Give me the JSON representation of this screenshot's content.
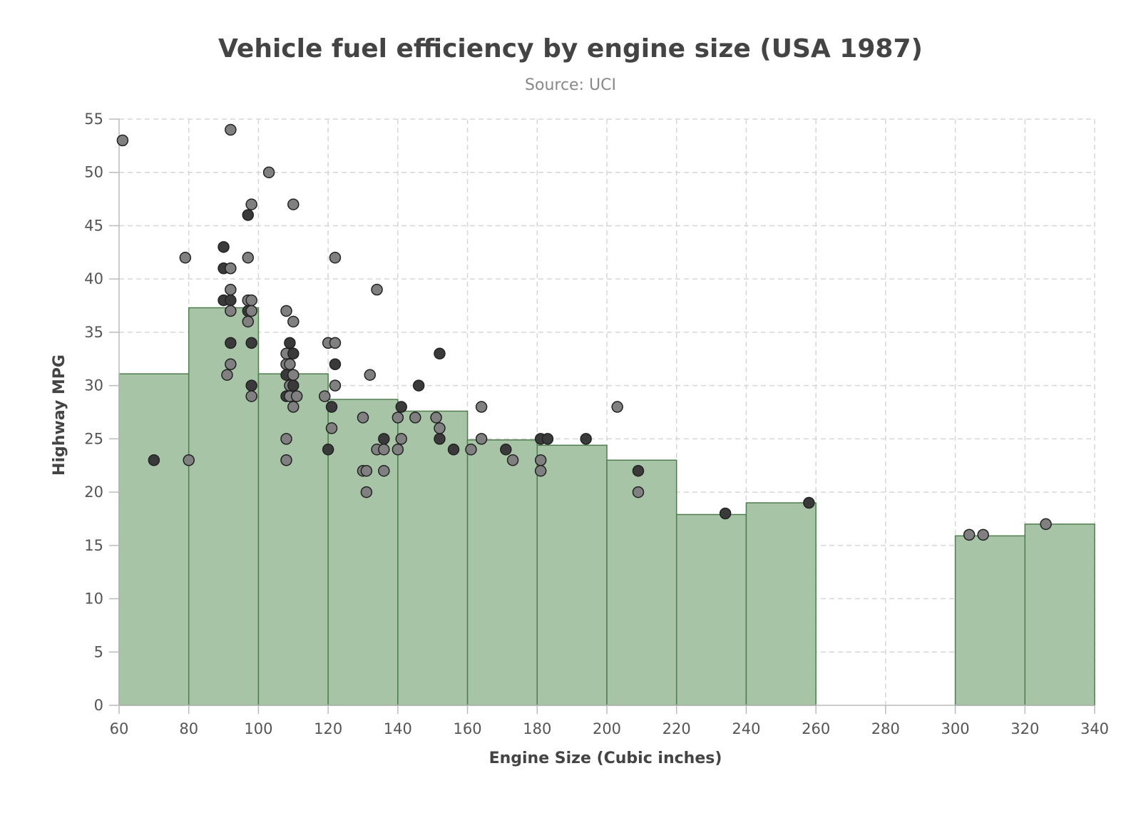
{
  "chart_data": {
    "type": "bar+scatter",
    "title": "Vehicle fuel efficiency by engine size (USA 1987)",
    "subtitle": "Source: UCI",
    "xlabel": "Engine Size (Cubic inches)",
    "ylabel": "Highway MPG",
    "xlim": [
      60,
      340
    ],
    "ylim": [
      0,
      55
    ],
    "x_ticks": [
      60,
      80,
      100,
      120,
      140,
      160,
      180,
      200,
      220,
      240,
      260,
      280,
      300,
      320,
      340
    ],
    "y_ticks": [
      0,
      5,
      10,
      15,
      20,
      25,
      30,
      35,
      40,
      45,
      50,
      55
    ],
    "grid": true,
    "colors": {
      "bar_fill": "#a7c4a6",
      "bar_stroke": "#4e7d4e",
      "point_fill": "#808080",
      "point_fill_dark": "#3a3a3a",
      "point_stroke": "#222222"
    },
    "bars": [
      {
        "x0": 60,
        "x1": 80,
        "value": 31.1
      },
      {
        "x0": 80,
        "x1": 100,
        "value": 37.3
      },
      {
        "x0": 100,
        "x1": 120,
        "value": 31.1
      },
      {
        "x0": 120,
        "x1": 140,
        "value": 28.7
      },
      {
        "x0": 140,
        "x1": 160,
        "value": 27.6
      },
      {
        "x0": 160,
        "x1": 180,
        "value": 24.9
      },
      {
        "x0": 180,
        "x1": 200,
        "value": 24.4
      },
      {
        "x0": 200,
        "x1": 220,
        "value": 23.0
      },
      {
        "x0": 220,
        "x1": 240,
        "value": 17.9
      },
      {
        "x0": 240,
        "x1": 260,
        "value": 19.0
      },
      {
        "x0": 300,
        "x1": 320,
        "value": 15.9
      },
      {
        "x0": 320,
        "x1": 340,
        "value": 17.0
      }
    ],
    "points": [
      [
        61,
        53
      ],
      [
        70,
        23
      ],
      [
        79,
        42
      ],
      [
        80,
        23
      ],
      [
        90,
        43
      ],
      [
        90,
        41
      ],
      [
        90,
        38
      ],
      [
        91,
        31
      ],
      [
        92,
        54
      ],
      [
        92,
        41
      ],
      [
        92,
        39
      ],
      [
        92,
        38
      ],
      [
        92,
        37
      ],
      [
        92,
        34
      ],
      [
        92,
        32
      ],
      [
        97,
        46
      ],
      [
        97,
        42
      ],
      [
        97,
        38
      ],
      [
        97,
        37
      ],
      [
        97,
        36
      ],
      [
        98,
        47
      ],
      [
        98,
        38
      ],
      [
        98,
        37
      ],
      [
        98,
        34
      ],
      [
        98,
        30
      ],
      [
        98,
        29
      ],
      [
        103,
        50
      ],
      [
        108,
        37
      ],
      [
        108,
        33
      ],
      [
        108,
        32
      ],
      [
        108,
        31
      ],
      [
        108,
        29
      ],
      [
        108,
        25
      ],
      [
        108,
        23
      ],
      [
        109,
        34
      ],
      [
        109,
        32
      ],
      [
        109,
        30
      ],
      [
        109,
        29
      ],
      [
        110,
        47
      ],
      [
        110,
        36
      ],
      [
        110,
        33
      ],
      [
        110,
        31
      ],
      [
        110,
        30
      ],
      [
        110,
        28
      ],
      [
        111,
        29
      ],
      [
        119,
        29
      ],
      [
        120,
        34
      ],
      [
        120,
        24
      ],
      [
        121,
        28
      ],
      [
        121,
        26
      ],
      [
        122,
        42
      ],
      [
        122,
        34
      ],
      [
        122,
        32
      ],
      [
        122,
        30
      ],
      [
        130,
        27
      ],
      [
        130,
        22
      ],
      [
        131,
        22
      ],
      [
        131,
        20
      ],
      [
        132,
        31
      ],
      [
        134,
        39
      ],
      [
        134,
        24
      ],
      [
        136,
        25
      ],
      [
        136,
        24
      ],
      [
        136,
        22
      ],
      [
        140,
        27
      ],
      [
        140,
        24
      ],
      [
        141,
        28
      ],
      [
        141,
        25
      ],
      [
        145,
        27
      ],
      [
        146,
        30
      ],
      [
        151,
        27
      ],
      [
        152,
        33
      ],
      [
        152,
        26
      ],
      [
        152,
        25
      ],
      [
        156,
        24
      ],
      [
        161,
        24
      ],
      [
        164,
        28
      ],
      [
        164,
        25
      ],
      [
        171,
        24
      ],
      [
        173,
        23
      ],
      [
        181,
        25
      ],
      [
        181,
        23
      ],
      [
        181,
        22
      ],
      [
        183,
        25
      ],
      [
        194,
        25
      ],
      [
        203,
        28
      ],
      [
        209,
        22
      ],
      [
        209,
        20
      ],
      [
        234,
        18
      ],
      [
        258,
        19
      ],
      [
        304,
        16
      ],
      [
        308,
        16
      ],
      [
        326,
        17
      ]
    ],
    "dark_points": [
      [
        70,
        23
      ],
      [
        90,
        43
      ],
      [
        90,
        41
      ],
      [
        90,
        38
      ],
      [
        92,
        38
      ],
      [
        92,
        34
      ],
      [
        97,
        46
      ],
      [
        97,
        37
      ],
      [
        98,
        34
      ],
      [
        98,
        30
      ],
      [
        108,
        31
      ],
      [
        108,
        29
      ],
      [
        109,
        34
      ],
      [
        110,
        33
      ],
      [
        110,
        30
      ],
      [
        120,
        24
      ],
      [
        121,
        28
      ],
      [
        122,
        32
      ],
      [
        136,
        25
      ],
      [
        141,
        28
      ],
      [
        146,
        30
      ],
      [
        152,
        33
      ],
      [
        152,
        25
      ],
      [
        156,
        24
      ],
      [
        171,
        24
      ],
      [
        181,
        25
      ],
      [
        183,
        25
      ],
      [
        194,
        25
      ],
      [
        209,
        22
      ],
      [
        234,
        18
      ],
      [
        258,
        19
      ]
    ]
  }
}
